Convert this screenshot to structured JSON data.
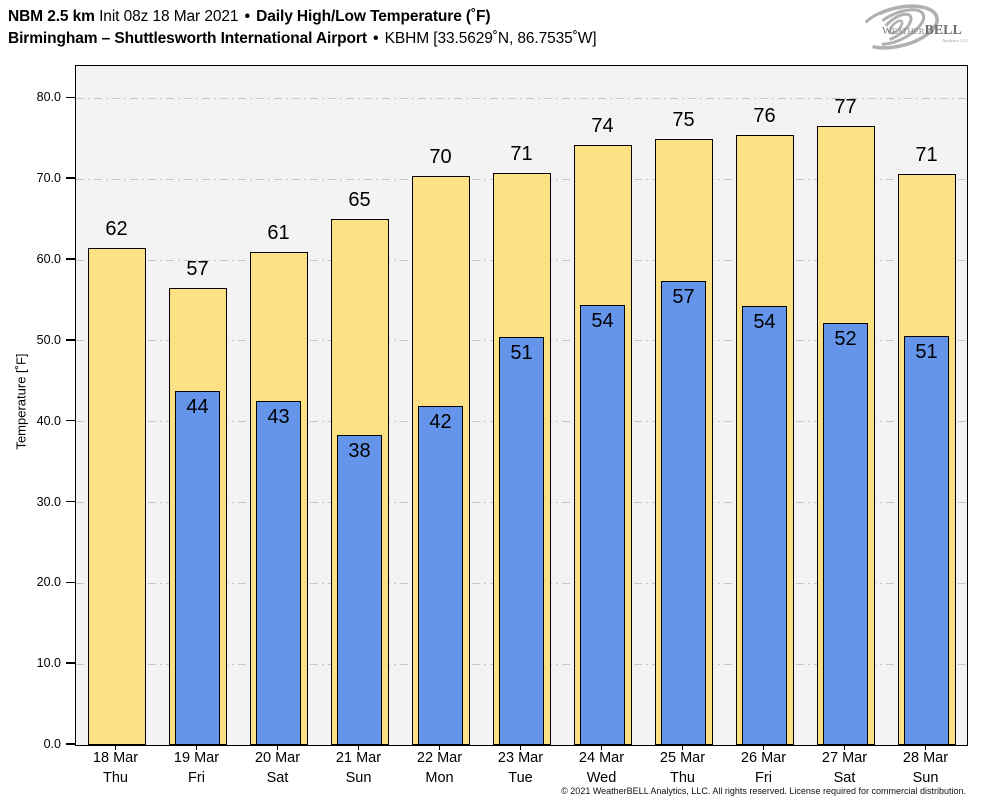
{
  "header": {
    "model": "NBM 2.5 km",
    "init": "Init 08z 18 Mar 2021",
    "sep": "•",
    "product": "Daily High/Low Temperature (˚F)",
    "station_name": "Birmingham – Shuttlesworth International Airport",
    "station_meta": "KBHM [33.5629˚N, 86.7535˚W]"
  },
  "logo": {
    "name": "weatherbell-logo",
    "text_main": "WEATHERBELL",
    "text_weather": "Weather",
    "text_bell": "BELL",
    "text_sub": "Analytics LLC"
  },
  "chart_data": {
    "type": "bar",
    "title": "Daily High/Low Temperature (˚F)",
    "ylabel": "Temperature [˚F]",
    "ylim": [
      0,
      84
    ],
    "yticks": [
      0,
      10,
      20,
      30,
      40,
      50,
      60,
      70,
      80
    ],
    "ytick_labels": [
      "0.0",
      "10.0",
      "20.0",
      "30.0",
      "40.0",
      "50.0",
      "60.0",
      "70.0",
      "80.0"
    ],
    "grid": "horizontal dash-dot",
    "legend_position": "none",
    "plot_background": "#F3F3F3",
    "grid_color": "#C6C6C6",
    "categories": [
      {
        "date": "18 Mar",
        "day": "Thu"
      },
      {
        "date": "19 Mar",
        "day": "Fri"
      },
      {
        "date": "20 Mar",
        "day": "Sat"
      },
      {
        "date": "21 Mar",
        "day": "Sun"
      },
      {
        "date": "22 Mar",
        "day": "Mon"
      },
      {
        "date": "23 Mar",
        "day": "Tue"
      },
      {
        "date": "24 Mar",
        "day": "Wed"
      },
      {
        "date": "25 Mar",
        "day": "Thu"
      },
      {
        "date": "26 Mar",
        "day": "Fri"
      },
      {
        "date": "27 Mar",
        "day": "Sat"
      },
      {
        "date": "28 Mar",
        "day": "Sun"
      }
    ],
    "series": [
      {
        "name": "High",
        "color": "#FCE083",
        "labels": [
          62,
          57,
          61,
          65,
          70,
          71,
          74,
          75,
          76,
          77,
          71
        ],
        "values": [
          61.5,
          56.5,
          61.0,
          65.1,
          70.4,
          70.8,
          74.2,
          75.0,
          75.5,
          76.6,
          70.7
        ]
      },
      {
        "name": "Low",
        "color": "#6495EA",
        "labels": [
          null,
          44,
          43,
          38,
          42,
          51,
          54,
          57,
          54,
          52,
          51
        ],
        "values": [
          null,
          43.8,
          42.6,
          38.3,
          41.9,
          50.5,
          54.4,
          57.4,
          54.3,
          52.2,
          50.6
        ]
      }
    ]
  },
  "footer": {
    "copyright": "© 2021 WeatherBELL Analytics, LLC. All rights reserved. License required for commercial distribution."
  }
}
